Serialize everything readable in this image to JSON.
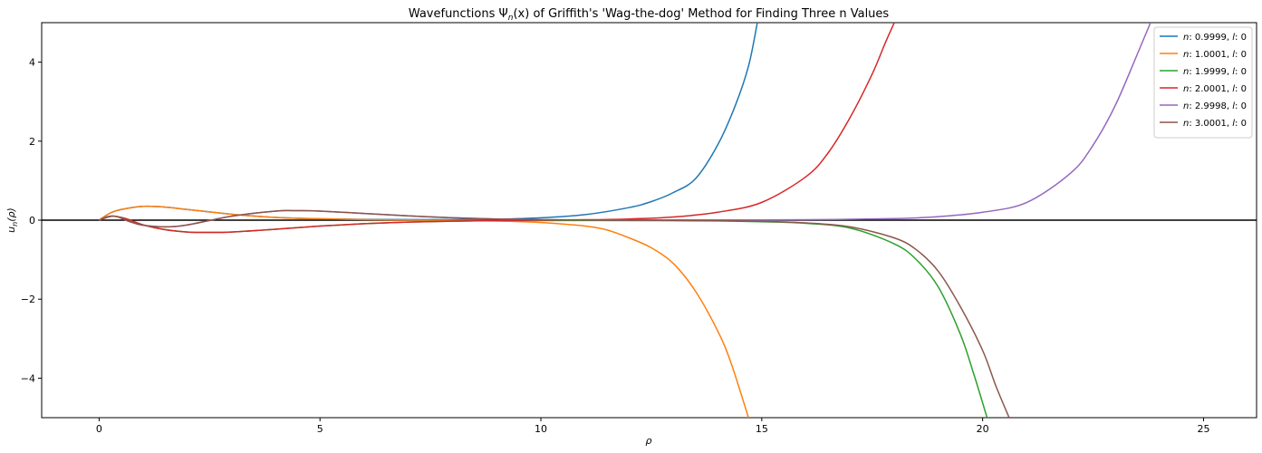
{
  "chart_data": {
    "type": "line",
    "title": "Wavefunctions Ψ_n(x) of Griffith's 'Wag-the-dog' Method for Finding Three n Values",
    "xlabel": "ρ",
    "ylabel": "u_n(ρ)",
    "xlim": [
      -1.3,
      26.2
    ],
    "ylim": [
      -5,
      5
    ],
    "xticks": [
      0,
      5,
      10,
      15,
      20,
      25
    ],
    "yticks": [
      -4,
      -2,
      0,
      2,
      4
    ],
    "xtick_labels": [
      "0",
      "5",
      "10",
      "15",
      "20",
      "25"
    ],
    "ytick_labels": [
      "−4",
      "−2",
      "0",
      "2",
      "4"
    ],
    "legend_position": "top-right",
    "reference_line": {
      "y": 0,
      "color": "#000000"
    },
    "series": [
      {
        "name": "n: 0.9999, l: 0",
        "n_label": "n",
        "n_value": ": 0.9999, ",
        "l_label": "l",
        "l_value": ": 0",
        "color": "#1f77b4",
        "x": [
          0,
          0.25,
          0.5,
          1,
          1.5,
          2,
          3,
          4,
          5,
          6,
          7,
          8,
          9,
          10,
          11,
          12,
          12.5,
          13,
          13.5,
          14,
          14.4,
          14.7,
          14.9
        ],
        "y": [
          0,
          0.18,
          0.27,
          0.35,
          0.33,
          0.27,
          0.15,
          0.07,
          0.035,
          0.02,
          0.015,
          0.015,
          0.025,
          0.06,
          0.14,
          0.32,
          0.47,
          0.7,
          1.05,
          1.9,
          2.9,
          3.9,
          5.0
        ]
      },
      {
        "name": "n: 1.0001, l: 0",
        "n_label": "n",
        "n_value": ": 1.0001, ",
        "l_label": "l",
        "l_value": ": 0",
        "color": "#ff7f0e",
        "x": [
          0,
          0.25,
          0.5,
          1,
          1.5,
          2,
          3,
          4,
          5,
          6,
          7,
          8,
          9,
          10,
          11,
          11.5,
          12,
          12.5,
          13,
          13.5,
          14,
          14.3,
          14.7
        ],
        "y": [
          0,
          0.18,
          0.27,
          0.35,
          0.33,
          0.27,
          0.15,
          0.07,
          0.035,
          0.015,
          0.005,
          -0.005,
          -0.02,
          -0.06,
          -0.15,
          -0.25,
          -0.45,
          -0.7,
          -1.1,
          -1.8,
          -2.8,
          -3.6,
          -5.0
        ]
      },
      {
        "name": "n: 1.9999, l: 0",
        "n_label": "n",
        "n_value": ": 1.9999, ",
        "l_label": "l",
        "l_value": ": 0",
        "color": "#2ca02c",
        "x": [
          0,
          0.3,
          0.6,
          1,
          1.5,
          2,
          2.5,
          3,
          4,
          5,
          6,
          7,
          8,
          9,
          10,
          12,
          14,
          15,
          16,
          17,
          18,
          18.5,
          19,
          19.5,
          19.8,
          20.1
        ],
        "y": [
          0,
          0.1,
          0.04,
          -0.12,
          -0.24,
          -0.3,
          -0.31,
          -0.3,
          -0.23,
          -0.15,
          -0.09,
          -0.05,
          -0.025,
          -0.015,
          -0.01,
          -0.01,
          -0.02,
          -0.04,
          -0.08,
          -0.2,
          -0.6,
          -1.0,
          -1.7,
          -2.9,
          -3.9,
          -5.0
        ]
      },
      {
        "name": "n: 2.0001, l: 0",
        "n_label": "n",
        "n_value": ": 2.0001, ",
        "l_label": "l",
        "l_value": ": 0",
        "color": "#d62728",
        "x": [
          0,
          0.3,
          0.6,
          1,
          1.5,
          2,
          2.5,
          3,
          4,
          5,
          6,
          7,
          8,
          9,
          10,
          11,
          12,
          13,
          14,
          15,
          16,
          16.5,
          17,
          17.5,
          17.8,
          18
        ],
        "y": [
          0,
          0.1,
          0.04,
          -0.12,
          -0.24,
          -0.3,
          -0.31,
          -0.3,
          -0.23,
          -0.15,
          -0.09,
          -0.05,
          -0.025,
          -0.01,
          0.0,
          0.01,
          0.03,
          0.08,
          0.2,
          0.45,
          1.1,
          1.7,
          2.6,
          3.7,
          4.5,
          5.0
        ]
      },
      {
        "name": "n: 2.9998, l: 0",
        "n_label": "n",
        "n_value": ": 2.9998, ",
        "l_label": "l",
        "l_value": ": 0",
        "color": "#9467bd",
        "x": [
          0,
          0.2,
          0.4,
          0.7,
          1,
          1.5,
          2,
          3,
          4,
          4.5,
          5,
          6,
          7,
          8,
          9,
          10,
          12,
          14,
          16,
          18,
          19,
          20,
          21,
          22,
          22.5,
          23,
          23.5,
          23.8
        ],
        "y": [
          0,
          0.09,
          0.09,
          -0.04,
          -0.13,
          -0.17,
          -0.12,
          0.1,
          0.23,
          0.24,
          0.23,
          0.17,
          0.11,
          0.06,
          0.03,
          0.01,
          0.0,
          0.0,
          0.01,
          0.04,
          0.09,
          0.2,
          0.45,
          1.2,
          1.9,
          2.9,
          4.2,
          5.0
        ]
      },
      {
        "name": "n: 3.0001, l: 0",
        "n_label": "n",
        "n_value": ": 3.0001, ",
        "l_label": "l",
        "l_value": ": 0",
        "color": "#8c564b",
        "x": [
          0,
          0.2,
          0.4,
          0.7,
          1,
          1.5,
          2,
          3,
          4,
          4.5,
          5,
          6,
          7,
          8,
          9,
          10,
          12,
          14,
          15,
          16,
          17,
          18,
          18.5,
          19,
          19.5,
          20,
          20.3,
          20.6
        ],
        "y": [
          0,
          0.09,
          0.09,
          -0.04,
          -0.13,
          -0.17,
          -0.12,
          0.1,
          0.23,
          0.24,
          0.23,
          0.17,
          0.11,
          0.06,
          0.03,
          0.01,
          0.0,
          -0.01,
          -0.03,
          -0.07,
          -0.17,
          -0.45,
          -0.75,
          -1.3,
          -2.2,
          -3.3,
          -4.2,
          -5.0
        ]
      }
    ]
  }
}
